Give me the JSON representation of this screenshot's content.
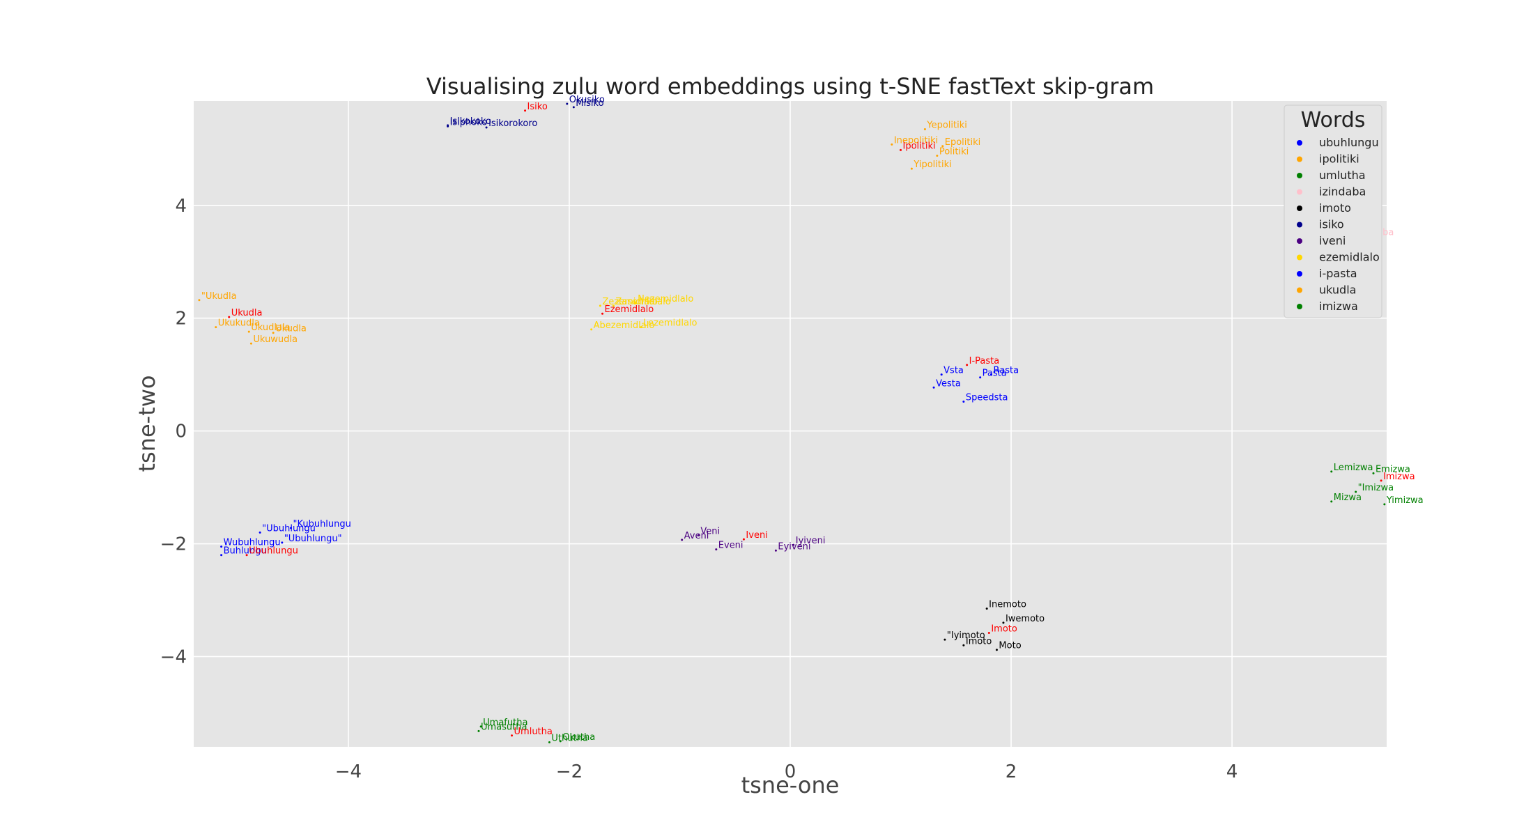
{
  "chart_data": {
    "type": "scatter",
    "title": "Visualising zulu word embeddings using t-SNE fastText skip-gram",
    "xlabel": "tsne-one",
    "ylabel": "tsne-two",
    "xlim": [
      -5.4,
      5.4
    ],
    "ylim": [
      -5.6,
      5.85
    ],
    "xticks": [
      -4,
      -2,
      0,
      2,
      4
    ],
    "yticks": [
      -4,
      -2,
      0,
      2,
      4
    ],
    "xtick_labels": [
      "−4",
      "−2",
      "0",
      "2",
      "4"
    ],
    "ytick_labels": [
      "−4",
      "−2",
      "0",
      "2",
      "4"
    ],
    "grid": true,
    "legend": {
      "title": "Words",
      "placement": "top-right",
      "entries": [
        {
          "label": "ubuhlungu",
          "color": "#0000ff"
        },
        {
          "label": "ipolitiki",
          "color": "#ffa500"
        },
        {
          "label": "umlutha",
          "color": "#008000"
        },
        {
          "label": "izindaba",
          "color": "#ffc0cb"
        },
        {
          "label": "imoto",
          "color": "#000000"
        },
        {
          "label": "isiko",
          "color": "#00008b"
        },
        {
          "label": "iveni",
          "color": "#4b0082"
        },
        {
          "label": "ezemidlalo",
          "color": "#ffd700"
        },
        {
          "label": "i-pasta",
          "color": "#0000ff"
        },
        {
          "label": "ukudla",
          "color": "#ffa500"
        },
        {
          "label": "imizwa",
          "color": "#008000"
        }
      ]
    },
    "series": [
      {
        "name": "ubuhlungu",
        "color": "#0000ff",
        "points": [
          {
            "x": -4.52,
            "y": -1.72,
            "label": "\"Kubuhlungu"
          },
          {
            "x": -4.8,
            "y": -1.8,
            "label": "\"Ubuhlungu"
          },
          {
            "x": -5.15,
            "y": -2.05,
            "label": "Wubuhlungu"
          },
          {
            "x": -4.6,
            "y": -1.98,
            "label": "\"Ubuhlungu\""
          },
          {
            "x": -5.15,
            "y": -2.2,
            "label": "Buhlungu"
          }
        ]
      },
      {
        "name": "ipolitiki",
        "color": "#ffa500",
        "points": [
          {
            "x": 1.22,
            "y": 5.35,
            "label": "Yepolitiki"
          },
          {
            "x": 0.92,
            "y": 5.08,
            "label": "Inepolitiki"
          },
          {
            "x": 1.38,
            "y": 5.05,
            "label": "Epolitiki"
          },
          {
            "x": 1.33,
            "y": 4.88,
            "label": "Politiki"
          },
          {
            "x": 1.1,
            "y": 4.65,
            "label": "Yipolitiki"
          }
        ]
      },
      {
        "name": "umlutha",
        "color": "#008000",
        "points": [
          {
            "x": -2.8,
            "y": -5.24,
            "label": "Umafutha"
          },
          {
            "x": -2.82,
            "y": -5.32,
            "label": "Umasutha"
          },
          {
            "x": -2.18,
            "y": -5.52,
            "label": "Uthutha"
          },
          {
            "x": -2.08,
            "y": -5.5,
            "label": "Okutha"
          }
        ]
      },
      {
        "name": "izindaba",
        "color": "#ffc0cb",
        "points": [
          {
            "x": 5.1,
            "y": 3.45,
            "label": "Izindaba"
          }
        ]
      },
      {
        "name": "imoto",
        "color": "#000000",
        "points": [
          {
            "x": 1.78,
            "y": -3.15,
            "label": "Inemoto"
          },
          {
            "x": 1.93,
            "y": -3.4,
            "label": "Iwemoto"
          },
          {
            "x": 1.4,
            "y": -3.7,
            "label": "\"Iyimoto"
          },
          {
            "x": 1.57,
            "y": -3.8,
            "label": "Imoto"
          },
          {
            "x": 1.87,
            "y": -3.88,
            "label": "Moto"
          }
        ]
      },
      {
        "name": "isiko",
        "color": "#00008b",
        "points": [
          {
            "x": -2.02,
            "y": 5.8,
            "label": "Okusiko"
          },
          {
            "x": -1.96,
            "y": 5.74,
            "label": "Misiko"
          },
          {
            "x": -3.1,
            "y": 5.42,
            "label": "Isikokoko"
          },
          {
            "x": -3.1,
            "y": 5.4,
            "label": "Isiphoko"
          },
          {
            "x": -2.75,
            "y": 5.38,
            "label": "Isikorokoro"
          }
        ]
      },
      {
        "name": "iveni",
        "color": "#4b0082",
        "points": [
          {
            "x": -0.98,
            "y": -1.93,
            "label": "Aveni"
          },
          {
            "x": -0.83,
            "y": -1.85,
            "label": "Veni"
          },
          {
            "x": -0.67,
            "y": -2.1,
            "label": "Eveni"
          },
          {
            "x": 0.03,
            "y": -2.02,
            "label": "Iyiveni"
          },
          {
            "x": -0.13,
            "y": -2.12,
            "label": "Eyiveni"
          }
        ]
      },
      {
        "name": "ezemidlalo",
        "color": "#ffd700",
        "points": [
          {
            "x": -1.72,
            "y": 2.22,
            "label": "Zezemidlalo"
          },
          {
            "x": -1.6,
            "y": 2.22,
            "label": "Zasemidlalo"
          },
          {
            "x": -1.4,
            "y": 2.27,
            "label": "Nezemidlalo"
          },
          {
            "x": -1.8,
            "y": 1.8,
            "label": "Abezemidlalo"
          },
          {
            "x": -1.35,
            "y": 1.84,
            "label": "Lezemidlalo"
          }
        ]
      },
      {
        "name": "i-pasta",
        "color": "#0000ff",
        "points": [
          {
            "x": 1.82,
            "y": 1.0,
            "label": "Rasta"
          },
          {
            "x": 1.72,
            "y": 0.95,
            "label": "Pasta"
          },
          {
            "x": 1.37,
            "y": 1.0,
            "label": "Vsta"
          },
          {
            "x": 1.3,
            "y": 0.77,
            "label": "Vesta"
          },
          {
            "x": 1.57,
            "y": 0.52,
            "label": "Speedsta"
          }
        ]
      },
      {
        "name": "ukudla",
        "color": "#ffa500",
        "points": [
          {
            "x": -5.35,
            "y": 2.32,
            "label": "\"Ukudla"
          },
          {
            "x": -5.2,
            "y": 1.84,
            "label": "Ukukudla"
          },
          {
            "x": -4.9,
            "y": 1.76,
            "label": "Ukudlala"
          },
          {
            "x": -4.68,
            "y": 1.74,
            "label": "Ukudla"
          },
          {
            "x": -4.88,
            "y": 1.55,
            "label": "Ukuwudla"
          }
        ]
      },
      {
        "name": "imizwa",
        "color": "#008000",
        "points": [
          {
            "x": 4.9,
            "y": -0.72,
            "label": "Lemizwa"
          },
          {
            "x": 5.28,
            "y": -0.75,
            "label": "Emizwa"
          },
          {
            "x": 5.12,
            "y": -1.08,
            "label": "\"Imizwa"
          },
          {
            "x": 4.9,
            "y": -1.25,
            "label": "Mizwa"
          },
          {
            "x": 5.38,
            "y": -1.3,
            "label": "Yimizwa"
          }
        ]
      },
      {
        "name": "query",
        "color": "#ff0000",
        "points": [
          {
            "x": -5.08,
            "y": 2.02,
            "label": "Ukudla"
          },
          {
            "x": -4.92,
            "y": -2.2,
            "label": "Ubuhlungu"
          },
          {
            "x": -2.4,
            "y": 5.68,
            "label": "Isiko"
          },
          {
            "x": -1.7,
            "y": 2.08,
            "label": "Ezemidlalo"
          },
          {
            "x": 1.0,
            "y": 4.98,
            "label": "Ipolitiki"
          },
          {
            "x": 1.6,
            "y": 1.17,
            "label": "I-Pasta"
          },
          {
            "x": -0.42,
            "y": -1.92,
            "label": "Iveni"
          },
          {
            "x": -2.52,
            "y": -5.4,
            "label": "Umlutha"
          },
          {
            "x": 1.8,
            "y": -3.58,
            "label": "Imoto"
          },
          {
            "x": 5.35,
            "y": -0.88,
            "label": "Imizwa"
          }
        ]
      }
    ]
  }
}
